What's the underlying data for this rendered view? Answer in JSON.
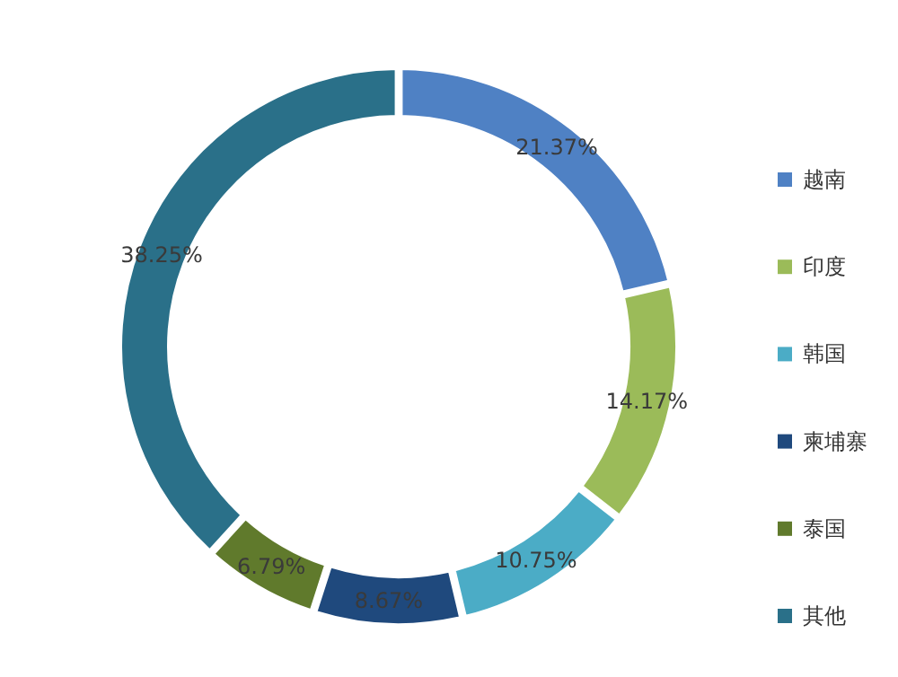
{
  "chart_data": {
    "type": "donut",
    "categories": [
      "越南",
      "印度",
      "韩国",
      "柬埔寨",
      "泰国",
      "其他"
    ],
    "values": [
      21.37,
      14.17,
      10.75,
      8.67,
      6.79,
      38.25
    ],
    "colors": [
      "#4f81c4",
      "#9bbb59",
      "#4bacc6",
      "#1f497d",
      "#607a2c",
      "#2a7089"
    ],
    "value_labels": [
      "21.37%",
      "14.17%",
      "10.75%",
      "8.67%",
      "6.79%",
      "38.25%"
    ],
    "legend": "right"
  }
}
